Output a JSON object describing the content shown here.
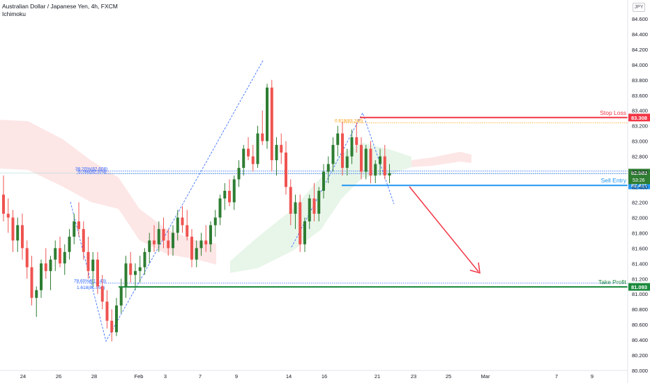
{
  "header": {
    "title": "Australian Dollar / Japanese Yen, 4h, FXCM",
    "indicator": "Ichimoku",
    "currency": "JPY"
  },
  "colors": {
    "bull": "#26a69a",
    "bull_dark": "#2e7d32",
    "bear": "#ef5350",
    "stop_loss": "#f23645",
    "sell_entry": "#2196f3",
    "take_profit": "#1b8a3d",
    "fib": "#2962ff",
    "orange": "#ff9800",
    "cloud_red": "rgba(244,143,143,0.22)",
    "cloud_green": "rgba(129,199,132,0.18)"
  },
  "chart_data": {
    "type": "candlestick",
    "title": "Australian Dollar / Japanese Yen, 4h, FXCM",
    "y_axis": {
      "ylim": [
        80.0,
        84.8
      ],
      "ticks": [
        "84.600",
        "84.400",
        "84.200",
        "84.000",
        "83.800",
        "83.600",
        "83.400",
        "83.200",
        "83.000",
        "82.800",
        "82.600",
        "82.400",
        "82.200",
        "82.000",
        "81.800",
        "81.600",
        "81.400",
        "81.200",
        "81.000",
        "80.800",
        "80.600",
        "80.400",
        "80.200",
        "80.000"
      ]
    },
    "x_axis": {
      "ticks": [
        "24",
        "26",
        "28",
        "Feb",
        "3",
        "7",
        "9",
        "14",
        "16",
        "21",
        "23",
        "25",
        "Mar",
        "7",
        "9"
      ]
    },
    "levels": [
      {
        "name": "Stop Loss",
        "value": 83.308,
        "label": "83.308"
      },
      {
        "name": "Sell Entry",
        "value": 82.421,
        "label": "82.421"
      },
      {
        "name": "Take Profit",
        "value": 81.093,
        "label": "81.093"
      }
    ],
    "price_tags": [
      {
        "label": "82.583"
      },
      {
        "label": "53:26"
      }
    ],
    "fib_labels": [
      {
        "text": "0.618(83.240)",
        "value": 83.24
      },
      {
        "text": "38.20%(82.608)",
        "value": 82.608
      },
      {
        "text": "0.786(82.574)",
        "value": 82.574
      },
      {
        "text": "78.60%(81.143)",
        "value": 81.143
      },
      {
        "text": "1.618(81.056)",
        "value": 81.056
      }
    ],
    "candles": [
      {
        "o": 82.3,
        "h": 82.55,
        "l": 81.95,
        "c": 82.05
      },
      {
        "o": 82.05,
        "h": 82.25,
        "l": 81.8,
        "c": 82.0
      },
      {
        "o": 82.0,
        "h": 82.1,
        "l": 81.55,
        "c": 81.7
      },
      {
        "o": 81.7,
        "h": 82.0,
        "l": 81.55,
        "c": 81.9
      },
      {
        "o": 81.9,
        "h": 82.05,
        "l": 81.45,
        "c": 81.6
      },
      {
        "o": 81.6,
        "h": 81.7,
        "l": 81.2,
        "c": 81.35
      },
      {
        "o": 81.35,
        "h": 81.5,
        "l": 80.85,
        "c": 80.95
      },
      {
        "o": 80.95,
        "h": 81.1,
        "l": 80.7,
        "c": 81.05
      },
      {
        "o": 81.05,
        "h": 81.45,
        "l": 80.95,
        "c": 81.4
      },
      {
        "o": 81.4,
        "h": 81.6,
        "l": 81.2,
        "c": 81.3
      },
      {
        "o": 81.3,
        "h": 81.5,
        "l": 81.05,
        "c": 81.45
      },
      {
        "o": 81.45,
        "h": 81.7,
        "l": 81.3,
        "c": 81.6
      },
      {
        "o": 81.6,
        "h": 81.75,
        "l": 81.35,
        "c": 81.4
      },
      {
        "o": 81.4,
        "h": 81.65,
        "l": 81.25,
        "c": 81.55
      },
      {
        "o": 81.55,
        "h": 81.85,
        "l": 81.45,
        "c": 81.75
      },
      {
        "o": 81.75,
        "h": 82.05,
        "l": 81.65,
        "c": 81.95
      },
      {
        "o": 81.95,
        "h": 82.2,
        "l": 81.75,
        "c": 81.85
      },
      {
        "o": 81.85,
        "h": 81.95,
        "l": 81.45,
        "c": 81.55
      },
      {
        "o": 81.55,
        "h": 81.75,
        "l": 81.2,
        "c": 81.3
      },
      {
        "o": 81.3,
        "h": 81.55,
        "l": 81.1,
        "c": 81.45
      },
      {
        "o": 81.45,
        "h": 81.55,
        "l": 81.0,
        "c": 81.1
      },
      {
        "o": 81.1,
        "h": 81.25,
        "l": 80.8,
        "c": 80.9
      },
      {
        "o": 80.9,
        "h": 81.05,
        "l": 80.55,
        "c": 80.65
      },
      {
        "o": 80.65,
        "h": 80.8,
        "l": 80.38,
        "c": 80.5
      },
      {
        "o": 80.5,
        "h": 80.95,
        "l": 80.45,
        "c": 80.85
      },
      {
        "o": 80.85,
        "h": 81.2,
        "l": 80.75,
        "c": 81.1
      },
      {
        "o": 81.1,
        "h": 81.5,
        "l": 80.95,
        "c": 81.4
      },
      {
        "o": 81.4,
        "h": 81.55,
        "l": 81.15,
        "c": 81.25
      },
      {
        "o": 81.25,
        "h": 81.4,
        "l": 81.05,
        "c": 81.3
      },
      {
        "o": 81.3,
        "h": 81.5,
        "l": 81.15,
        "c": 81.35
      },
      {
        "o": 81.35,
        "h": 81.6,
        "l": 81.25,
        "c": 81.55
      },
      {
        "o": 81.55,
        "h": 81.8,
        "l": 81.4,
        "c": 81.7
      },
      {
        "o": 81.7,
        "h": 81.9,
        "l": 81.55,
        "c": 81.65
      },
      {
        "o": 81.65,
        "h": 81.95,
        "l": 81.55,
        "c": 81.85
      },
      {
        "o": 81.85,
        "h": 82.0,
        "l": 81.6,
        "c": 81.7
      },
      {
        "o": 81.7,
        "h": 81.85,
        "l": 81.5,
        "c": 81.6
      },
      {
        "o": 81.6,
        "h": 81.9,
        "l": 81.5,
        "c": 81.8
      },
      {
        "o": 81.8,
        "h": 82.1,
        "l": 81.7,
        "c": 82.0
      },
      {
        "o": 82.0,
        "h": 82.15,
        "l": 81.8,
        "c": 81.9
      },
      {
        "o": 81.9,
        "h": 82.1,
        "l": 81.7,
        "c": 81.75
      },
      {
        "o": 81.75,
        "h": 81.85,
        "l": 81.35,
        "c": 81.45
      },
      {
        "o": 81.45,
        "h": 81.7,
        "l": 81.35,
        "c": 81.6
      },
      {
        "o": 81.6,
        "h": 81.8,
        "l": 81.5,
        "c": 81.7
      },
      {
        "o": 81.7,
        "h": 81.9,
        "l": 81.55,
        "c": 81.65
      },
      {
        "o": 81.65,
        "h": 81.95,
        "l": 81.55,
        "c": 81.9
      },
      {
        "o": 81.9,
        "h": 82.1,
        "l": 81.75,
        "c": 82.0
      },
      {
        "o": 82.0,
        "h": 82.3,
        "l": 81.9,
        "c": 82.25
      },
      {
        "o": 82.25,
        "h": 82.45,
        "l": 82.1,
        "c": 82.35
      },
      {
        "o": 82.35,
        "h": 82.5,
        "l": 82.15,
        "c": 82.2
      },
      {
        "o": 82.2,
        "h": 82.55,
        "l": 82.1,
        "c": 82.5
      },
      {
        "o": 82.5,
        "h": 82.75,
        "l": 82.4,
        "c": 82.65
      },
      {
        "o": 82.65,
        "h": 82.95,
        "l": 82.55,
        "c": 82.9
      },
      {
        "o": 82.9,
        "h": 83.05,
        "l": 82.75,
        "c": 82.8
      },
      {
        "o": 82.8,
        "h": 82.95,
        "l": 82.6,
        "c": 82.7
      },
      {
        "o": 82.7,
        "h": 83.2,
        "l": 82.65,
        "c": 83.1
      },
      {
        "o": 83.1,
        "h": 83.4,
        "l": 82.95,
        "c": 83.0
      },
      {
        "o": 83.0,
        "h": 83.75,
        "l": 82.9,
        "c": 83.7
      },
      {
        "o": 83.7,
        "h": 83.8,
        "l": 82.6,
        "c": 82.75
      },
      {
        "o": 82.75,
        "h": 83.05,
        "l": 82.55,
        "c": 82.95
      },
      {
        "o": 82.95,
        "h": 83.1,
        "l": 82.7,
        "c": 82.85
      },
      {
        "o": 82.85,
        "h": 83.0,
        "l": 82.3,
        "c": 82.4
      },
      {
        "o": 82.4,
        "h": 82.5,
        "l": 81.9,
        "c": 82.05
      },
      {
        "o": 82.05,
        "h": 82.3,
        "l": 81.85,
        "c": 82.2
      },
      {
        "o": 82.2,
        "h": 82.3,
        "l": 81.55,
        "c": 81.65
      },
      {
        "o": 81.65,
        "h": 82.0,
        "l": 81.55,
        "c": 81.95
      },
      {
        "o": 81.95,
        "h": 82.3,
        "l": 81.85,
        "c": 82.25
      },
      {
        "o": 82.25,
        "h": 82.45,
        "l": 81.95,
        "c": 82.05
      },
      {
        "o": 82.05,
        "h": 82.4,
        "l": 81.95,
        "c": 82.35
      },
      {
        "o": 82.35,
        "h": 82.7,
        "l": 82.25,
        "c": 82.6
      },
      {
        "o": 82.6,
        "h": 82.8,
        "l": 82.45,
        "c": 82.7
      },
      {
        "o": 82.7,
        "h": 83.05,
        "l": 82.6,
        "c": 82.95
      },
      {
        "o": 82.95,
        "h": 83.2,
        "l": 82.8,
        "c": 83.1
      },
      {
        "o": 83.1,
        "h": 83.25,
        "l": 82.55,
        "c": 82.65
      },
      {
        "o": 82.65,
        "h": 82.9,
        "l": 82.55,
        "c": 82.8
      },
      {
        "o": 82.8,
        "h": 83.15,
        "l": 82.7,
        "c": 83.05
      },
      {
        "o": 83.05,
        "h": 83.24,
        "l": 82.85,
        "c": 82.95
      },
      {
        "o": 82.95,
        "h": 83.05,
        "l": 82.5,
        "c": 82.6
      },
      {
        "o": 82.6,
        "h": 82.95,
        "l": 82.5,
        "c": 82.9
      },
      {
        "o": 82.9,
        "h": 83.0,
        "l": 82.45,
        "c": 82.55
      },
      {
        "o": 82.55,
        "h": 82.75,
        "l": 82.45,
        "c": 82.7
      },
      {
        "o": 82.7,
        "h": 82.9,
        "l": 82.55,
        "c": 82.8
      },
      {
        "o": 82.8,
        "h": 82.95,
        "l": 82.5,
        "c": 82.55
      },
      {
        "o": 82.55,
        "h": 82.7,
        "l": 82.45,
        "c": 82.58
      }
    ]
  }
}
